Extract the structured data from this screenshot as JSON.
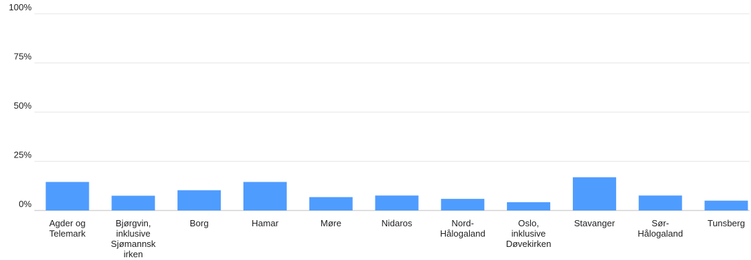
{
  "chart_data": {
    "type": "bar",
    "title": "",
    "xlabel": "",
    "ylabel": "",
    "ylim": [
      0,
      100
    ],
    "y_ticks": [
      "0%",
      "25%",
      "50%",
      "75%",
      "100%"
    ],
    "grid": true,
    "bar_color": "#4f9cff",
    "categories": [
      [
        "Agder og",
        "Telemark"
      ],
      [
        "Bjørgvin,",
        "inklusive",
        "Sjømannsk",
        "irken"
      ],
      [
        "Borg"
      ],
      [
        "Hamar"
      ],
      [
        "Møre"
      ],
      [
        "Nidaros"
      ],
      [
        "Nord-",
        "Hålogaland"
      ],
      [
        "Oslo,",
        "inklusive",
        "Døvekirken"
      ],
      [
        "Stavanger"
      ],
      [
        "Sør-",
        "Hålogaland"
      ],
      [
        "Tunsberg"
      ]
    ],
    "values": [
      14.5,
      7.5,
      10.3,
      14.5,
      6.8,
      7.6,
      5.9,
      4.2,
      16.9,
      7.6,
      5.0
    ]
  }
}
